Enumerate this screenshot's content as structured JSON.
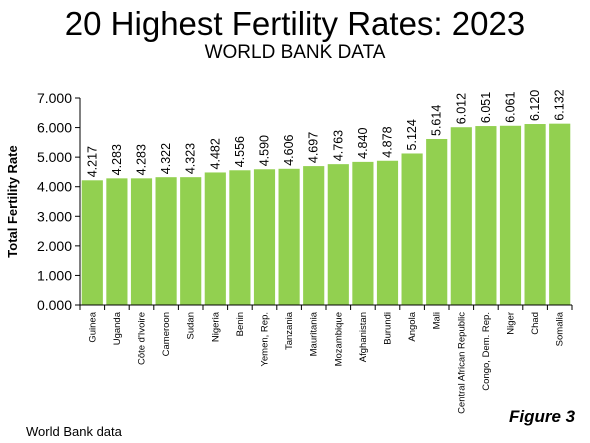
{
  "chart_data": {
    "type": "bar",
    "title": "20 Highest Fertility Rates: 2023",
    "subtitle": "WORLD BANK DATA",
    "ylabel": "Total Fertility Rate",
    "xlabel": "",
    "ylim": [
      0,
      7
    ],
    "yticks": [
      "0.000",
      "1.000",
      "2.000",
      "3.000",
      "4.000",
      "5.000",
      "6.000",
      "7.000"
    ],
    "grid": false,
    "bar_color": "#92d050",
    "categories": [
      "Guinea",
      "Uganda",
      "Côte d'Ivoire",
      "Cameroon",
      "Sudan",
      "Nigeria",
      "Benin",
      "Yemen, Rep.",
      "Tanzania",
      "Mauritania",
      "Mozambique",
      "Afghanistan",
      "Burundi",
      "Angola",
      "Mali",
      "Central African Republic",
      "Congo, Dem. Rep.",
      "Niger",
      "Chad",
      "Somalia"
    ],
    "values": [
      4.217,
      4.283,
      4.283,
      4.322,
      4.323,
      4.482,
      4.556,
      4.59,
      4.606,
      4.697,
      4.763,
      4.84,
      4.878,
      5.124,
      5.614,
      6.012,
      6.051,
      6.061,
      6.12,
      6.132
    ],
    "value_labels": [
      "4.217",
      "4.283",
      "4.283",
      "4.322",
      "4.323",
      "4.482",
      "4.556",
      "4.590",
      "4.606",
      "4.697",
      "4.763",
      "4.840",
      "4.878",
      "5.124",
      "5.614",
      "6.012",
      "6.051",
      "6.061",
      "6.120",
      "6.132"
    ]
  },
  "footer": {
    "source": "World Bank data",
    "figure_label": "Figure 3"
  }
}
